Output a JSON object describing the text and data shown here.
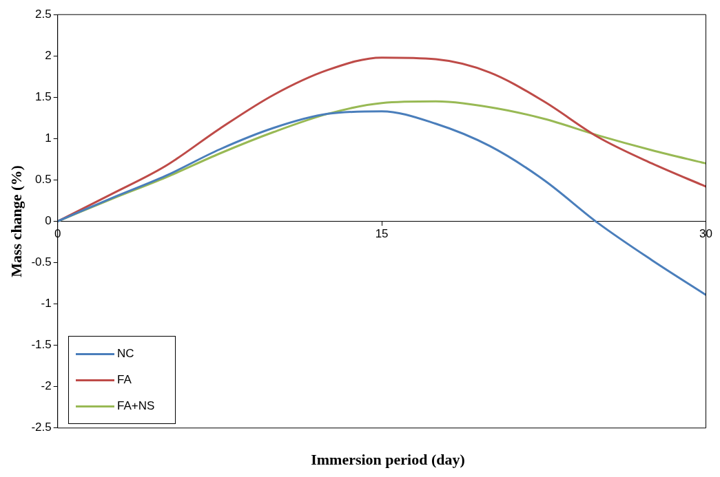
{
  "chart_data": {
    "type": "line",
    "xlabel": "Immersion period (day)",
    "ylabel": "Mass change (%)",
    "x": [
      0,
      2.5,
      5,
      7.5,
      10,
      12.5,
      15,
      17.5,
      20,
      22.5,
      25,
      27.5,
      30
    ],
    "series": [
      {
        "name": "NC",
        "color": "#4a7ebb",
        "values": [
          0,
          0.28,
          0.55,
          0.87,
          1.13,
          1.3,
          1.33,
          1.18,
          0.91,
          0.5,
          -0.02,
          -0.47,
          -0.89
        ]
      },
      {
        "name": "FA",
        "color": "#be4b48",
        "values": [
          0,
          0.33,
          0.67,
          1.12,
          1.53,
          1.83,
          1.98,
          1.96,
          1.8,
          1.45,
          1.02,
          0.7,
          0.42
        ]
      },
      {
        "name": "FA+NS",
        "color": "#98b954",
        "values": [
          0,
          0.27,
          0.53,
          0.82,
          1.08,
          1.3,
          1.43,
          1.45,
          1.38,
          1.24,
          1.04,
          0.86,
          0.7
        ]
      }
    ],
    "xlim": [
      0,
      30
    ],
    "xticks": [
      0,
      15,
      30
    ],
    "ylim": [
      -2.5,
      2.5
    ],
    "yticks": [
      -2.5,
      -2,
      -1.5,
      -1,
      -0.5,
      0,
      0.5,
      1,
      1.5,
      2,
      2.5
    ],
    "grid": false,
    "legend": "bottom left",
    "marker": "none",
    "line_style": "solid"
  }
}
